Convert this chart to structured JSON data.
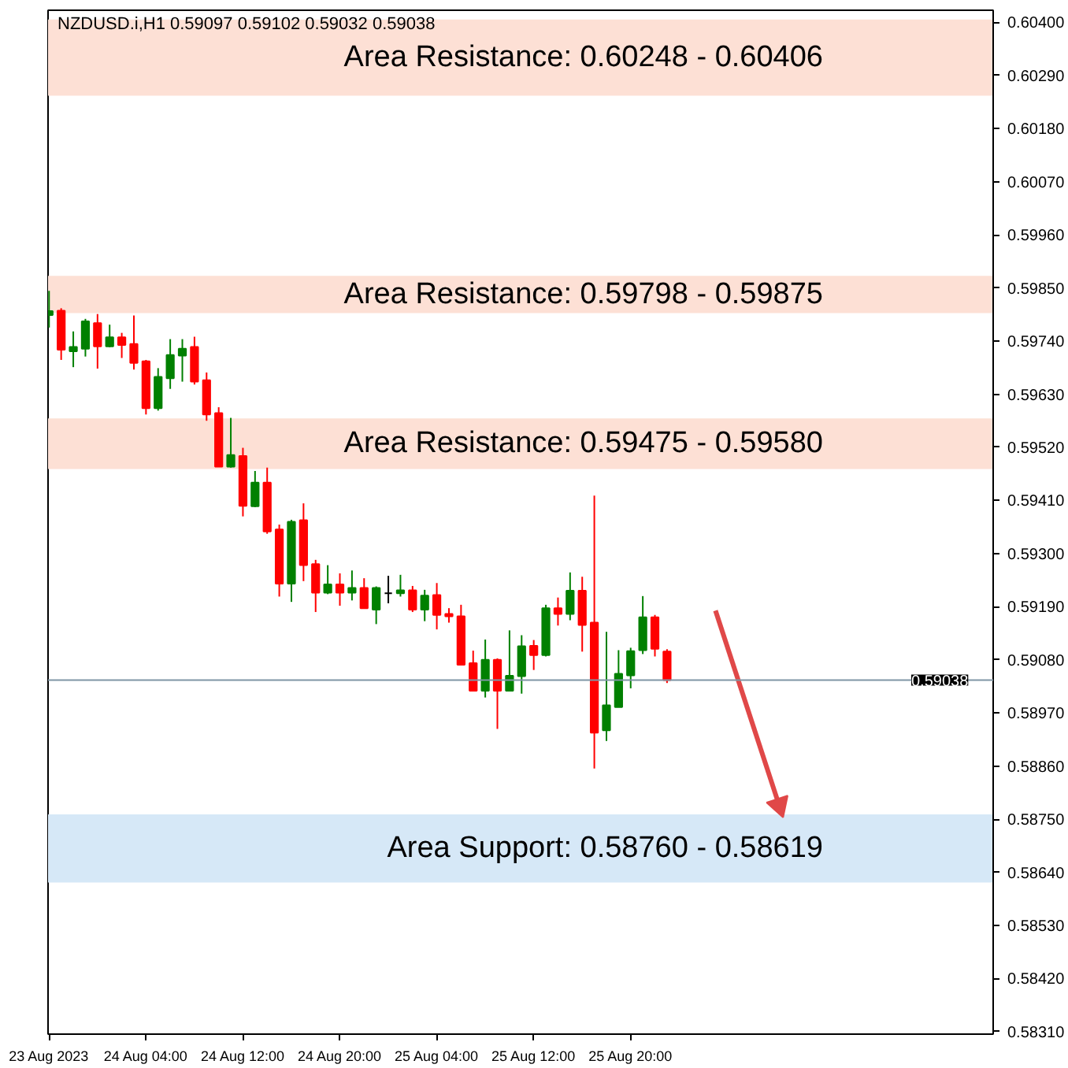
{
  "chart_data": {
    "type": "candlestick",
    "title": "NZDUSD.i,H1  0.59097 0.59102 0.59032 0.59038",
    "x": [
      "2023-08-23T20:00",
      "2023-08-23T21:00",
      "2023-08-23T22:00",
      "2023-08-23T23:00",
      "2023-08-24T00:00",
      "2023-08-24T01:00",
      "2023-08-24T02:00",
      "2023-08-24T03:00",
      "2023-08-24T04:00",
      "2023-08-24T05:00",
      "2023-08-24T06:00",
      "2023-08-24T07:00",
      "2023-08-24T08:00",
      "2023-08-24T09:00",
      "2023-08-24T10:00",
      "2023-08-24T11:00",
      "2023-08-24T12:00",
      "2023-08-24T13:00",
      "2023-08-24T14:00",
      "2023-08-24T15:00",
      "2023-08-24T16:00",
      "2023-08-24T17:00",
      "2023-08-24T18:00",
      "2023-08-24T19:00",
      "2023-08-24T20:00",
      "2023-08-24T21:00",
      "2023-08-24T22:00",
      "2023-08-24T23:00",
      "2023-08-25T00:00",
      "2023-08-25T01:00",
      "2023-08-25T02:00",
      "2023-08-25T03:00",
      "2023-08-25T04:00",
      "2023-08-25T05:00",
      "2023-08-25T06:00",
      "2023-08-25T07:00",
      "2023-08-25T08:00",
      "2023-08-25T09:00",
      "2023-08-25T10:00",
      "2023-08-25T11:00",
      "2023-08-25T12:00",
      "2023-08-25T13:00",
      "2023-08-25T14:00",
      "2023-08-25T15:00",
      "2023-08-25T16:00",
      "2023-08-25T17:00",
      "2023-08-25T18:00",
      "2023-08-25T19:00",
      "2023-08-25T20:00",
      "2023-08-25T21:00",
      "2023-08-25T22:00",
      "2023-08-25T23:00"
    ],
    "ohlc": [
      [
        0.59794,
        0.59844,
        0.59768,
        0.59802
      ],
      [
        0.59803,
        0.59808,
        0.59701,
        0.59722
      ],
      [
        0.59719,
        0.5976,
        0.59686,
        0.59728
      ],
      [
        0.59724,
        0.59786,
        0.59708,
        0.59781
      ],
      [
        0.59777,
        0.59796,
        0.59683,
        0.59729
      ],
      [
        0.59729,
        0.59774,
        0.59727,
        0.59748
      ],
      [
        0.59748,
        0.59757,
        0.59705,
        0.59732
      ],
      [
        0.59734,
        0.59793,
        0.59681,
        0.59695
      ],
      [
        0.59698,
        0.59701,
        0.59588,
        0.59601
      ],
      [
        0.59601,
        0.59684,
        0.59596,
        0.59666
      ],
      [
        0.59663,
        0.59744,
        0.59641,
        0.59711
      ],
      [
        0.5971,
        0.59744,
        0.59656,
        0.59724
      ],
      [
        0.59728,
        0.59749,
        0.5965,
        0.59656
      ],
      [
        0.59659,
        0.59675,
        0.59575,
        0.59588
      ],
      [
        0.59591,
        0.59603,
        0.5948,
        0.5948
      ],
      [
        0.5948,
        0.59581,
        0.59478,
        0.59504
      ],
      [
        0.59502,
        0.59519,
        0.59377,
        0.59399
      ],
      [
        0.59398,
        0.59471,
        0.59396,
        0.59447
      ],
      [
        0.59447,
        0.59478,
        0.59341,
        0.59346
      ],
      [
        0.5935,
        0.5936,
        0.59211,
        0.59238
      ],
      [
        0.59238,
        0.5937,
        0.592,
        0.59366
      ],
      [
        0.59369,
        0.59404,
        0.59243,
        0.59276
      ],
      [
        0.59278,
        0.59287,
        0.59179,
        0.59219
      ],
      [
        0.59219,
        0.59276,
        0.59216,
        0.59236
      ],
      [
        0.59236,
        0.59259,
        0.59192,
        0.59219
      ],
      [
        0.59219,
        0.59265,
        0.59203,
        0.59229
      ],
      [
        0.59229,
        0.59249,
        0.59187,
        0.59187
      ],
      [
        0.59184,
        0.59232,
        0.59154,
        0.59229
      ],
      [
        0.59218,
        0.59254,
        0.59197,
        0.59218
      ],
      [
        0.59218,
        0.59256,
        0.59211,
        0.59224
      ],
      [
        0.59224,
        0.59233,
        0.59179,
        0.59184
      ],
      [
        0.59184,
        0.59225,
        0.5916,
        0.59213
      ],
      [
        0.59214,
        0.59239,
        0.59143,
        0.59173
      ],
      [
        0.59175,
        0.59187,
        0.59157,
        0.5917
      ],
      [
        0.5917,
        0.59194,
        0.5907,
        0.5907
      ],
      [
        0.59073,
        0.59099,
        0.59016,
        0.59016
      ],
      [
        0.59016,
        0.59122,
        0.59002,
        0.5908
      ],
      [
        0.5908,
        0.59083,
        0.58937,
        0.59016
      ],
      [
        0.59016,
        0.59141,
        0.59016,
        0.59047
      ],
      [
        0.59046,
        0.59131,
        0.5901,
        0.59108
      ],
      [
        0.59109,
        0.59121,
        0.59059,
        0.5909
      ],
      [
        0.5909,
        0.59194,
        0.59087,
        0.59187
      ],
      [
        0.59187,
        0.59209,
        0.59151,
        0.59175
      ],
      [
        0.59175,
        0.59261,
        0.59162,
        0.59223
      ],
      [
        0.59223,
        0.59252,
        0.59097,
        0.59152
      ],
      [
        0.59157,
        0.5942,
        0.58855,
        0.58929
      ],
      [
        0.58934,
        0.59138,
        0.58912,
        0.58986
      ],
      [
        0.58982,
        0.591,
        0.58982,
        0.59051
      ],
      [
        0.59048,
        0.59105,
        0.59021,
        0.59098
      ],
      [
        0.591,
        0.59212,
        0.59092,
        0.59168
      ],
      [
        0.59168,
        0.59173,
        0.59087,
        0.59103
      ],
      [
        0.59097,
        0.59102,
        0.59032,
        0.59038
      ]
    ],
    "colors": [
      "#008000",
      "#ff0000",
      "#008000",
      "#008000",
      "#ff0000",
      "#008000",
      "#ff0000",
      "#ff0000",
      "#ff0000",
      "#008000",
      "#008000",
      "#008000",
      "#ff0000",
      "#ff0000",
      "#ff0000",
      "#008000",
      "#ff0000",
      "#008000",
      "#ff0000",
      "#ff0000",
      "#008000",
      "#ff0000",
      "#ff0000",
      "#008000",
      "#ff0000",
      "#008000",
      "#ff0000",
      "#008000",
      "#000000",
      "#008000",
      "#ff0000",
      "#008000",
      "#ff0000",
      "#ff0000",
      "#ff0000",
      "#ff0000",
      "#008000",
      "#ff0000",
      "#008000",
      "#008000",
      "#ff0000",
      "#008000",
      "#ff0000",
      "#008000",
      "#ff0000",
      "#ff0000",
      "#008000",
      "#008000",
      "#008000",
      "#008000",
      "#ff0000",
      "#ff0000"
    ],
    "series": [
      {
        "type": "line",
        "x": [
          "2023-08-26T03:00",
          "2023-08-26T08:15"
        ],
        "values": [
          0.59182,
          0.58779
        ],
        "color": "#e04848"
      }
    ],
    "xlim": [
      "2023-08-23T19:55",
      "2023-08-27T01:55"
    ],
    "xticks": [
      {
        "value": "2023-08-23T20:00",
        "label": "23 Aug 2023"
      },
      {
        "value": "2023-08-24T04:00",
        "label": "24 Aug 04:00"
      },
      {
        "value": "2023-08-24T12:00",
        "label": "24 Aug 12:00"
      },
      {
        "value": "2023-08-24T20:00",
        "label": "24 Aug 20:00"
      },
      {
        "value": "2023-08-25T04:00",
        "label": "25 Aug 04:00"
      },
      {
        "value": "2023-08-25T12:00",
        "label": "25 Aug 12:00"
      },
      {
        "value": "2023-08-25T20:00",
        "label": "25 Aug 20:00"
      }
    ],
    "ylim": [
      0.58305,
      0.60425
    ],
    "yticks": [
      {
        "value": 0.604,
        "label": "0.60400"
      },
      {
        "value": 0.6029,
        "label": "0.60290"
      },
      {
        "value": 0.6018,
        "label": "0.60180"
      },
      {
        "value": 0.6007,
        "label": "0.60070"
      },
      {
        "value": 0.5996,
        "label": "0.59960"
      },
      {
        "value": 0.5985,
        "label": "0.59850"
      },
      {
        "value": 0.5974,
        "label": "0.59740"
      },
      {
        "value": 0.5963,
        "label": "0.59630"
      },
      {
        "value": 0.5952,
        "label": "0.59520"
      },
      {
        "value": 0.5941,
        "label": "0.59410"
      },
      {
        "value": 0.593,
        "label": "0.59300"
      },
      {
        "value": 0.5919,
        "label": "0.59190"
      },
      {
        "value": 0.5908,
        "label": "0.59080"
      },
      {
        "value": 0.5897,
        "label": "0.58970"
      },
      {
        "value": 0.5886,
        "label": "0.58860"
      },
      {
        "value": 0.5875,
        "label": "0.58750"
      },
      {
        "value": 0.5864,
        "label": "0.58640"
      },
      {
        "value": 0.5853,
        "label": "0.58530"
      },
      {
        "value": 0.5842,
        "label": "0.58420"
      },
      {
        "value": 0.5831,
        "label": "0.58310"
      }
    ],
    "ref_lines": [
      {
        "axis": "y",
        "value": 0.59038,
        "label": "0.59038",
        "color": "#7f96a5"
      }
    ],
    "bands": [
      {
        "axis": "y",
        "from": 0.60248,
        "to": 0.60406,
        "label": "Area Resistance: 0.60248 - 0.60406",
        "color": "#fde0d5"
      },
      {
        "axis": "y",
        "from": 0.59798,
        "to": 0.59875,
        "label": "Area Resistance: 0.59798 - 0.59875",
        "color": "#fde0d5"
      },
      {
        "axis": "y",
        "from": 0.59475,
        "to": 0.5958,
        "label": "Area Resistance: 0.59475 - 0.59580",
        "color": "#fde0d5"
      },
      {
        "axis": "y",
        "from": 0.58619,
        "to": 0.5876,
        "label": "Area Support: 0.58760 - 0.58619",
        "color": "#d6e8f7"
      }
    ]
  }
}
